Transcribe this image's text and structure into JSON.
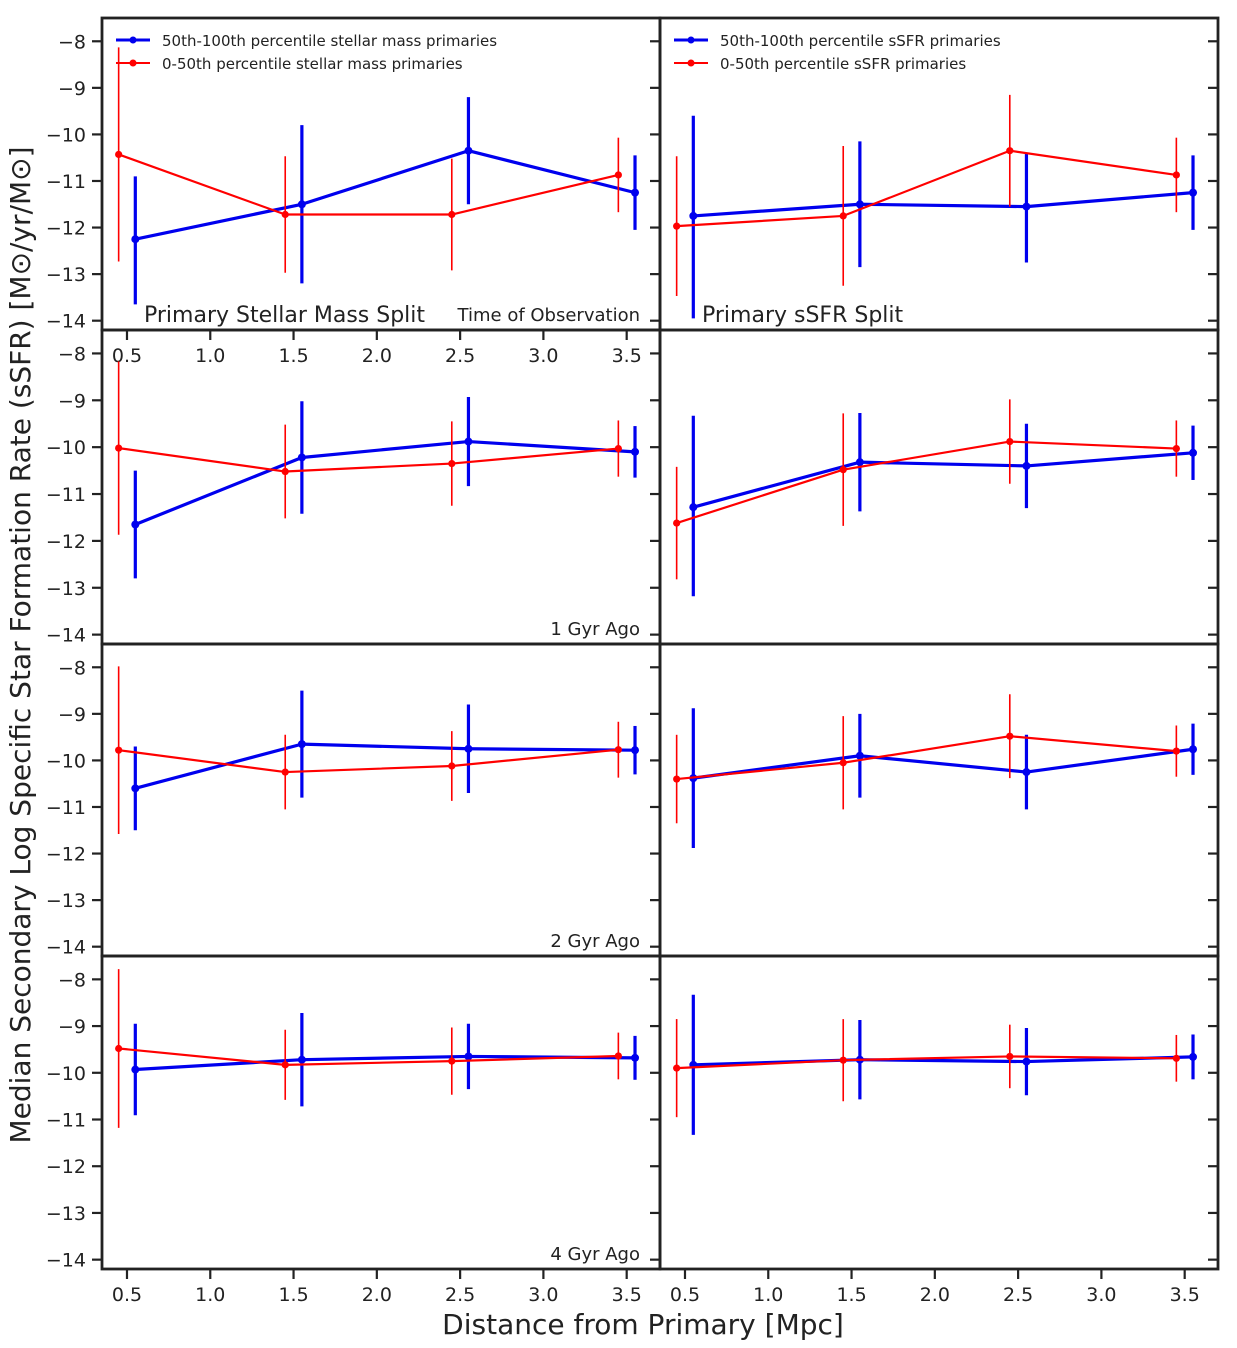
{
  "figure": {
    "ylabel": "Median Secondary Log Specific Star Formation Rate (sSFR) [M⊙/yr/M⊙]",
    "xlabel": "Distance from Primary [Mpc]"
  },
  "colors": {
    "high": "#0000ee",
    "low": "#ff0000",
    "frame": "#222222"
  },
  "chart_data": [
    {
      "type": "line",
      "panel": "Primary Stellar Mass Split / Time of Observation",
      "title": "Primary Stellar Mass Split",
      "time_label": "Time of Observation",
      "legend": [
        "50th-100th percentile stellar mass primaries",
        "0-50th percentile stellar mass primaries"
      ],
      "legend_position": "top-left",
      "x": [
        0.5,
        1.5,
        2.5,
        3.5
      ],
      "xlim": [
        0.35,
        3.7
      ],
      "ylim": [
        -14.2,
        -7.5
      ],
      "xticks": [
        "0.5",
        "1.0",
        "1.5",
        "2.0",
        "2.5",
        "3.0",
        "3.5"
      ],
      "yticks": [
        "−8",
        "−9",
        "−10",
        "−11",
        "−12",
        "−13",
        "−14"
      ],
      "series": [
        {
          "name": "50th-100th percentile stellar mass primaries",
          "values": [
            -12.25,
            -11.5,
            -10.35,
            -11.25
          ],
          "err_low": [
            1.4,
            1.7,
            1.15,
            0.8
          ],
          "err_high": [
            1.35,
            1.7,
            1.15,
            0.8
          ]
        },
        {
          "name": "0-50th percentile stellar mass primaries",
          "values": [
            -10.43,
            -11.72,
            -11.72,
            -10.87
          ],
          "err_low": [
            2.3,
            1.25,
            1.2,
            0.8
          ],
          "err_high": [
            2.3,
            1.25,
            1.2,
            0.8
          ]
        }
      ]
    },
    {
      "type": "line",
      "panel": "Primary sSFR Split / Time of Observation",
      "title": "Primary sSFR Split",
      "legend": [
        "50th-100th percentile sSFR primaries",
        "0-50th percentile sSFR primaries"
      ],
      "legend_position": "top-left",
      "x": [
        0.5,
        1.5,
        2.5,
        3.5
      ],
      "xlim": [
        0.35,
        3.7
      ],
      "ylim": [
        -14.2,
        -7.5
      ],
      "series": [
        {
          "name": "50th-100th percentile sSFR primaries",
          "values": [
            -11.75,
            -11.5,
            -11.55,
            -11.25
          ],
          "err_low": [
            2.2,
            1.35,
            1.2,
            0.8
          ],
          "err_high": [
            2.15,
            1.35,
            1.15,
            0.8
          ]
        },
        {
          "name": "0-50th percentile sSFR primaries",
          "values": [
            -11.97,
            -11.75,
            -10.35,
            -10.87
          ],
          "err_low": [
            1.5,
            1.5,
            1.2,
            0.8
          ],
          "err_high": [
            1.5,
            1.5,
            1.2,
            0.8
          ]
        }
      ]
    },
    {
      "type": "line",
      "panel": "Primary Stellar Mass Split / 1 Gyr Ago",
      "time_label": "1 Gyr Ago",
      "x": [
        0.5,
        1.5,
        2.5,
        3.5
      ],
      "xlim": [
        0.35,
        3.7
      ],
      "ylim": [
        -14.2,
        -7.5
      ],
      "yticks": [
        "−8",
        "−9",
        "−10",
        "−11",
        "−12",
        "−13",
        "−14"
      ],
      "series": [
        {
          "name": "50th-100th percentile stellar mass primaries",
          "values": [
            -11.65,
            -10.22,
            -9.88,
            -10.1
          ],
          "err_low": [
            1.15,
            1.2,
            0.95,
            0.55
          ],
          "err_high": [
            1.15,
            1.2,
            0.95,
            0.55
          ]
        },
        {
          "name": "0-50th percentile stellar mass primaries",
          "values": [
            -10.02,
            -10.52,
            -10.35,
            -10.03
          ],
          "err_low": [
            1.85,
            1.0,
            0.9,
            0.6
          ],
          "err_high": [
            1.85,
            1.0,
            0.9,
            0.6
          ]
        }
      ]
    },
    {
      "type": "line",
      "panel": "Primary sSFR Split / 1 Gyr Ago",
      "x": [
        0.5,
        1.5,
        2.5,
        3.5
      ],
      "xlim": [
        0.35,
        3.7
      ],
      "ylim": [
        -14.2,
        -7.5
      ],
      "series": [
        {
          "name": "50th-100th percentile sSFR primaries",
          "values": [
            -11.28,
            -10.32,
            -10.4,
            -10.12
          ],
          "err_low": [
            1.9,
            1.05,
            0.9,
            0.58
          ],
          "err_high": [
            1.95,
            1.05,
            0.9,
            0.58
          ]
        },
        {
          "name": "0-50th percentile sSFR primaries",
          "values": [
            -11.62,
            -10.48,
            -9.88,
            -10.03
          ],
          "err_low": [
            1.2,
            1.2,
            0.9,
            0.6
          ],
          "err_high": [
            1.2,
            1.2,
            0.9,
            0.6
          ]
        }
      ]
    },
    {
      "type": "line",
      "panel": "Primary Stellar Mass Split / 2 Gyr Ago",
      "time_label": "2 Gyr Ago",
      "x": [
        0.5,
        1.5,
        2.5,
        3.5
      ],
      "xlim": [
        0.35,
        3.7
      ],
      "ylim": [
        -14.2,
        -7.5
      ],
      "yticks": [
        "−8",
        "−9",
        "−10",
        "−11",
        "−12",
        "−13",
        "−14"
      ],
      "series": [
        {
          "name": "50th-100th percentile stellar mass primaries",
          "values": [
            -10.6,
            -9.65,
            -9.75,
            -9.78
          ],
          "err_low": [
            0.9,
            1.15,
            0.95,
            0.52
          ],
          "err_high": [
            0.9,
            1.15,
            0.95,
            0.52
          ]
        },
        {
          "name": "0-50th percentile stellar mass primaries",
          "values": [
            -9.78,
            -10.25,
            -10.12,
            -9.77
          ],
          "err_low": [
            1.8,
            0.8,
            0.75,
            0.6
          ],
          "err_high": [
            1.8,
            0.8,
            0.75,
            0.6
          ]
        }
      ]
    },
    {
      "type": "line",
      "panel": "Primary sSFR Split / 2 Gyr Ago",
      "x": [
        0.5,
        1.5,
        2.5,
        3.5
      ],
      "xlim": [
        0.35,
        3.7
      ],
      "ylim": [
        -14.2,
        -7.5
      ],
      "series": [
        {
          "name": "50th-100th percentile sSFR primaries",
          "values": [
            -10.38,
            -9.9,
            -10.25,
            -9.76
          ],
          "err_low": [
            1.5,
            0.9,
            0.8,
            0.55
          ],
          "err_high": [
            1.5,
            0.9,
            0.8,
            0.55
          ]
        },
        {
          "name": "0-50th percentile sSFR primaries",
          "values": [
            -10.4,
            -10.05,
            -9.48,
            -9.8
          ],
          "err_low": [
            0.95,
            1.0,
            0.9,
            0.55
          ],
          "err_high": [
            0.95,
            1.0,
            0.9,
            0.55
          ]
        }
      ]
    },
    {
      "type": "line",
      "panel": "Primary Stellar Mass Split / 4 Gyr Ago",
      "time_label": "4 Gyr Ago",
      "x": [
        0.5,
        1.5,
        2.5,
        3.5
      ],
      "xlim": [
        0.35,
        3.7
      ],
      "ylim": [
        -14.2,
        -7.5
      ],
      "xticks": [
        "0.5",
        "1.0",
        "1.5",
        "2.0",
        "2.5",
        "3.0",
        "3.5"
      ],
      "yticks": [
        "−8",
        "−9",
        "−10",
        "−11",
        "−12",
        "−13",
        "−14"
      ],
      "series": [
        {
          "name": "50th-100th percentile stellar mass primaries",
          "values": [
            -9.93,
            -9.72,
            -9.65,
            -9.68
          ],
          "err_low": [
            0.98,
            1.0,
            0.7,
            0.47
          ],
          "err_high": [
            0.98,
            1.0,
            0.7,
            0.47
          ]
        },
        {
          "name": "0-50th percentile stellar mass primaries",
          "values": [
            -9.48,
            -9.83,
            -9.75,
            -9.64
          ],
          "err_low": [
            1.7,
            0.75,
            0.72,
            0.5
          ],
          "err_high": [
            1.7,
            0.75,
            0.72,
            0.5
          ]
        }
      ]
    },
    {
      "type": "line",
      "panel": "Primary sSFR Split / 4 Gyr Ago",
      "x": [
        0.5,
        1.5,
        2.5,
        3.5
      ],
      "xlim": [
        0.35,
        3.7
      ],
      "ylim": [
        -14.2,
        -7.5
      ],
      "xticks": [
        "0.5",
        "1.0",
        "1.5",
        "2.0",
        "2.5",
        "3.0",
        "3.5"
      ],
      "series": [
        {
          "name": "50th-100th percentile sSFR primaries",
          "values": [
            -9.83,
            -9.72,
            -9.76,
            -9.66
          ],
          "err_low": [
            1.5,
            0.85,
            0.72,
            0.48
          ],
          "err_high": [
            1.5,
            0.85,
            0.72,
            0.48
          ]
        },
        {
          "name": "0-50th percentile sSFR primaries",
          "values": [
            -9.9,
            -9.73,
            -9.65,
            -9.69
          ],
          "err_low": [
            1.05,
            0.88,
            0.68,
            0.5
          ],
          "err_high": [
            1.05,
            0.88,
            0.68,
            0.5
          ]
        }
      ]
    }
  ]
}
